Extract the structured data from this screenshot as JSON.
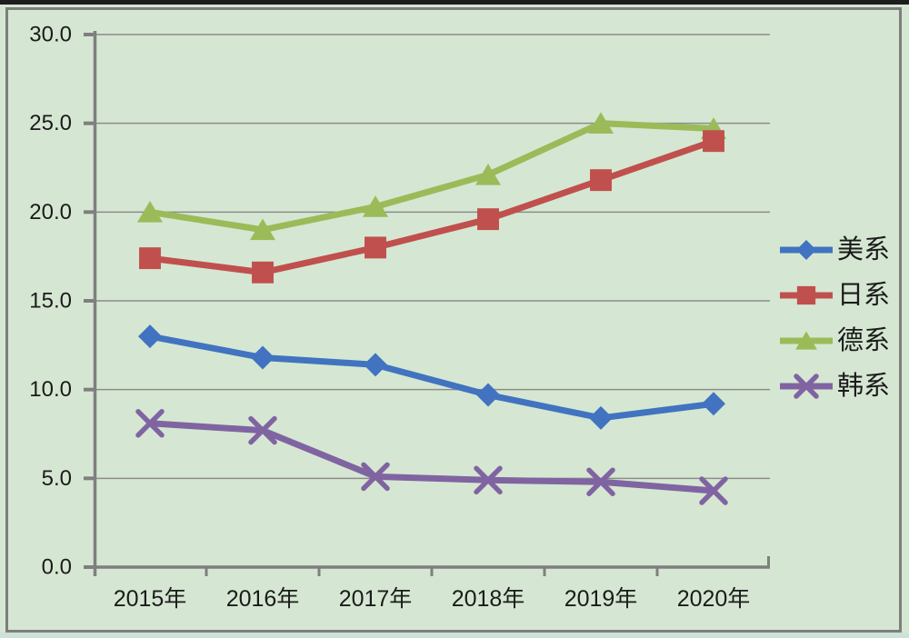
{
  "chart_data": {
    "type": "line",
    "categories": [
      "2015年",
      "2016年",
      "2017年",
      "2018年",
      "2019年",
      "2020年"
    ],
    "series": [
      {
        "id": "us",
        "name": "美系",
        "marker": "diamond",
        "color": "#4173c0",
        "values": [
          13.0,
          11.8,
          11.4,
          9.7,
          8.4,
          9.2
        ]
      },
      {
        "id": "japan",
        "name": "日系",
        "marker": "square",
        "color": "#c0504d",
        "values": [
          17.4,
          16.6,
          18.0,
          19.6,
          21.8,
          24.0
        ]
      },
      {
        "id": "germany",
        "name": "德系",
        "marker": "triangle",
        "color": "#9bbb59",
        "values": [
          20.0,
          19.0,
          20.3,
          22.1,
          25.0,
          24.7
        ]
      },
      {
        "id": "korea",
        "name": "韩系",
        "marker": "x",
        "color": "#8064a2",
        "values": [
          8.1,
          7.7,
          5.1,
          4.9,
          4.8,
          4.3
        ]
      }
    ],
    "ylim": [
      0,
      30
    ],
    "ytick_step": 5,
    "ytick_labels": [
      "0.0",
      "5.0",
      "10.0",
      "15.0",
      "20.0",
      "25.0",
      "30.0"
    ],
    "grid": true,
    "legend_position": "right"
  },
  "colors": {
    "background": "#d5e7d2",
    "gridline": "#8c8c8c",
    "axis": "#7f7f7f",
    "text": "#1b1b1b",
    "frame_border": "#7e7e7e",
    "top_strip": "#1d1d1d",
    "bottom_strip": "#cde2d7"
  }
}
